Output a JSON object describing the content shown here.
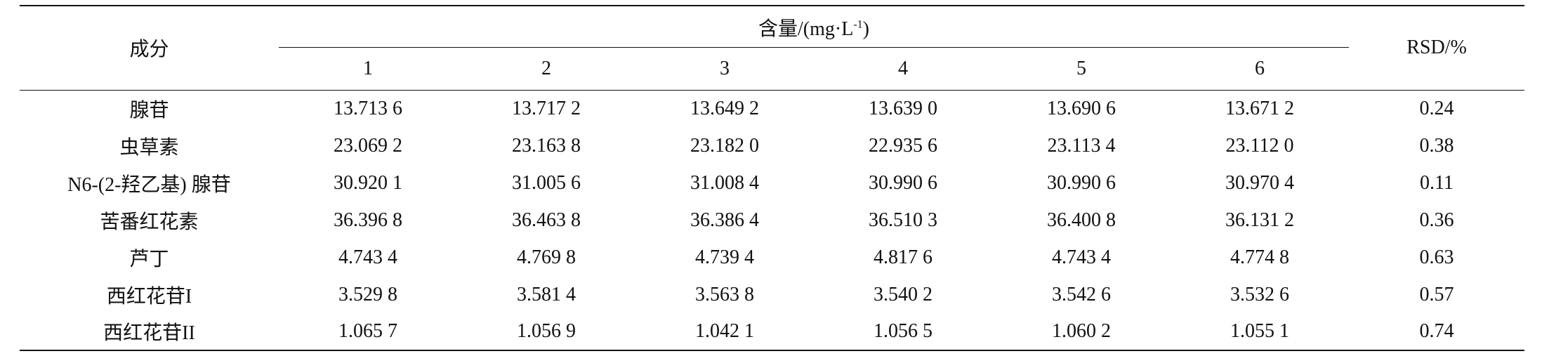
{
  "header": {
    "component": "成分",
    "content": {
      "text": "含量/(mg·L",
      "sup": "-1",
      "close": ")"
    },
    "columns": [
      "1",
      "2",
      "3",
      "4",
      "5",
      "6"
    ],
    "rsd": "RSD/%"
  },
  "rows": [
    [
      "腺苷",
      "13.713 6",
      "13.717 2",
      "13.649 2",
      "13.639 0",
      "13.690 6",
      "13.671 2",
      "0.24"
    ],
    [
      "虫草素",
      "23.069 2",
      "23.163 8",
      "23.182 0",
      "22.935 6",
      "23.113 4",
      "23.112 0",
      "0.38"
    ],
    [
      "N6-(2-羟乙基) 腺苷",
      "30.920 1",
      "31.005 6",
      "31.008 4",
      "30.990 6",
      "30.990 6",
      "30.970 4",
      "0.11"
    ],
    [
      "苦番红花素",
      "36.396 8",
      "36.463 8",
      "36.386 4",
      "36.510 3",
      "36.400 8",
      "36.131 2",
      "0.36"
    ],
    [
      "芦丁",
      "4.743 4",
      "4.769 8",
      "4.739 4",
      "4.817 6",
      "4.743 4",
      "4.774 8",
      "0.63"
    ],
    [
      "西红花苷I",
      "3.529 8",
      "3.581 4",
      "3.563 8",
      "3.540 2",
      "3.542 6",
      "3.532 6",
      "0.57"
    ],
    [
      "西红花苷II",
      "1.065 7",
      "1.056 9",
      "1.042 1",
      "1.056 5",
      "1.060 2",
      "1.055 1",
      "0.74"
    ]
  ]
}
